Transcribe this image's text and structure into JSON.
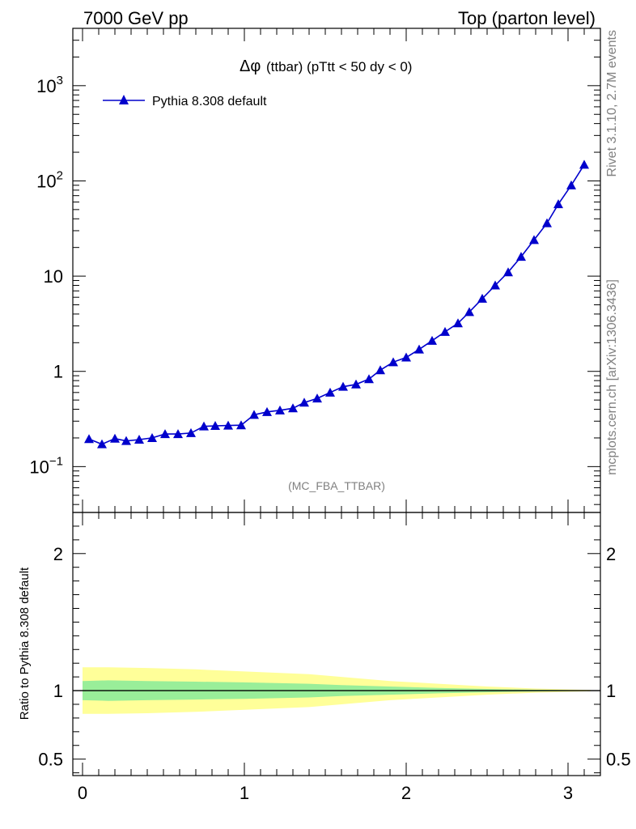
{
  "header": {
    "left": "7000 GeV pp",
    "right": "Top (parton level)"
  },
  "side": {
    "rivet": "Rivet 3.1.10,  2.7M events",
    "mcplots": "mcplots.cern.ch [arXiv:1306.3436]"
  },
  "colors": {
    "series": "#0000cc",
    "band_outer": "#ffff99",
    "band_inner": "#99ee99"
  },
  "chart_data": [
    {
      "type": "line",
      "yscale": "log",
      "title_symbol": "Δφ",
      "title": "(ttbar) (pTtt < 50 dy < 0)",
      "watermark": "(MC_FBA_TTBAR)",
      "xlim": [
        -0.06,
        3.2
      ],
      "ylim": [
        0.033,
        4000
      ],
      "ytick_labels": [
        {
          "v": 0.1,
          "base": "10",
          "exp": "−1"
        },
        {
          "v": 1,
          "base": "1",
          "exp": ""
        },
        {
          "v": 10,
          "base": "10",
          "exp": ""
        },
        {
          "v": 100,
          "base": "10",
          "exp": "2"
        },
        {
          "v": 1000,
          "base": "10",
          "exp": "3"
        }
      ],
      "series": [
        {
          "name": "Pythia 8.308 default",
          "x": [
            0.04,
            0.12,
            0.2,
            0.27,
            0.35,
            0.43,
            0.51,
            0.59,
            0.67,
            0.75,
            0.82,
            0.9,
            0.98,
            1.06,
            1.14,
            1.22,
            1.3,
            1.37,
            1.45,
            1.53,
            1.61,
            1.69,
            1.77,
            1.84,
            1.92,
            2.0,
            2.08,
            2.16,
            2.24,
            2.32,
            2.39,
            2.47,
            2.55,
            2.63,
            2.71,
            2.79,
            2.87,
            2.94,
            3.02,
            3.1
          ],
          "values": [
            0.195,
            0.172,
            0.197,
            0.186,
            0.192,
            0.2,
            0.22,
            0.22,
            0.225,
            0.265,
            0.268,
            0.27,
            0.272,
            0.35,
            0.375,
            0.39,
            0.41,
            0.47,
            0.52,
            0.6,
            0.69,
            0.73,
            0.83,
            1.03,
            1.25,
            1.4,
            1.7,
            2.1,
            2.6,
            3.2,
            4.2,
            5.8,
            8.0,
            11.0,
            16.0,
            24.0,
            36.0,
            57.0,
            90.0,
            148.0
          ]
        }
      ]
    },
    {
      "type": "area",
      "ylabel": "Ratio to Pythia 8.308 default",
      "xlim": [
        -0.06,
        3.2
      ],
      "ylim": [
        0.38,
        2.3
      ],
      "xticks": [
        0,
        1,
        2,
        3
      ],
      "xtick_labels": [
        "0",
        "1",
        "2",
        "3"
      ],
      "yticks": [
        0.5,
        1,
        2
      ],
      "ytick_labels": [
        "0.5",
        "1",
        "2"
      ],
      "reference": 1.0,
      "band_x": [
        0.0,
        0.16,
        0.4,
        0.7,
        1.0,
        1.4,
        1.6,
        1.9,
        2.2,
        2.5,
        2.8,
        3.14
      ],
      "outer_half_width": [
        0.17,
        0.17,
        0.165,
        0.155,
        0.14,
        0.12,
        0.1,
        0.07,
        0.05,
        0.03,
        0.015,
        0.005
      ],
      "inner_half_width": [
        0.07,
        0.075,
        0.07,
        0.065,
        0.06,
        0.05,
        0.04,
        0.03,
        0.02,
        0.012,
        0.006,
        0.002
      ]
    }
  ]
}
